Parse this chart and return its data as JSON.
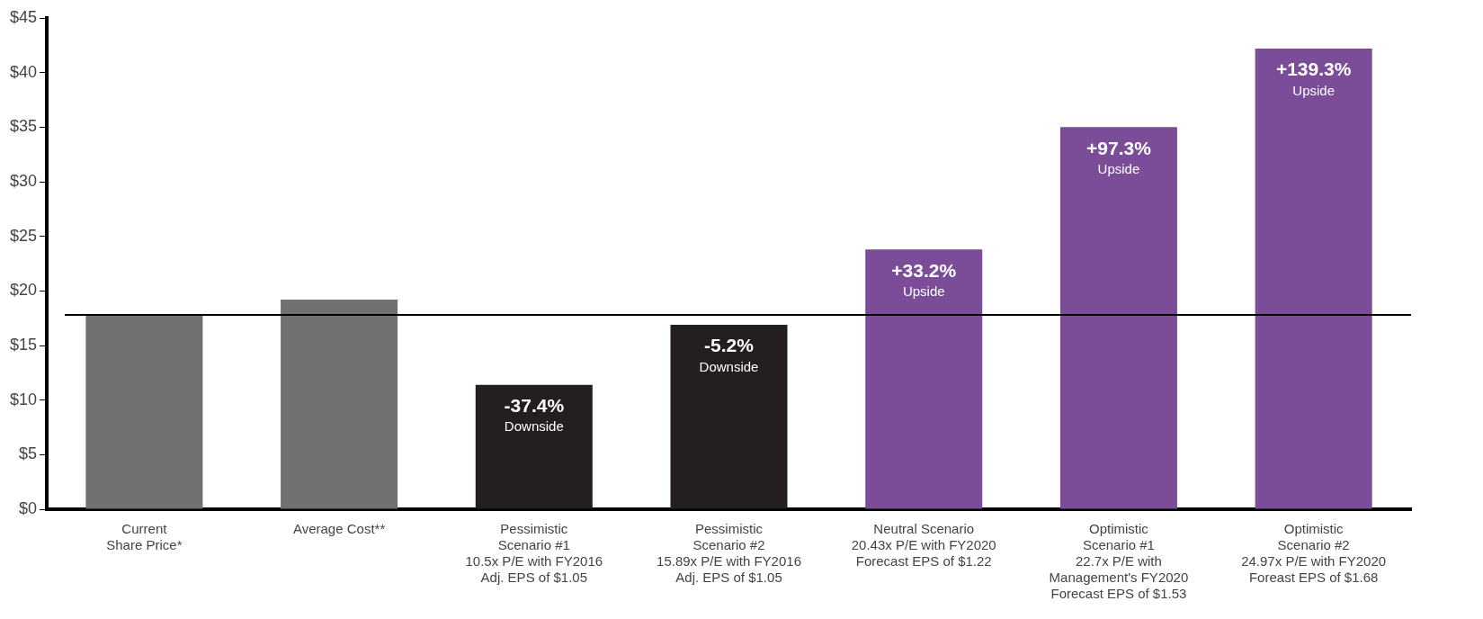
{
  "chart_data": {
    "type": "bar",
    "categories": [
      "Current\nShare Price*",
      "Average Cost**",
      "Pessimistic\nScenario #1\n10.5x P/E with FY2016\nAdj. EPS of $1.05",
      "Pessimistic\nScenario #2\n15.89x P/E with FY2016\nAdj. EPS of $1.05",
      "Neutral Scenario\n20.43x P/E with FY2020\nForecast EPS of $1.22",
      "Optimistic\nScenario #1\n22.7x P/E with\nManagement's FY2020\nForecast EPS of $1.53",
      "Optimistic\nScenario #2\n24.97x P/E with FY2020\nForeast EPS of $1.68"
    ],
    "values": [
      17.8,
      19.2,
      11.4,
      16.9,
      23.8,
      35.0,
      42.2
    ],
    "colors": [
      "#717171",
      "#717171",
      "#231f20",
      "#231f20",
      "#7b4c98",
      "#7b4c98",
      "#7b4c98"
    ],
    "annotations": [
      {
        "text": "-37.4%\nDownside",
        "x": "Pessimistic\nScenario #1\n10.5x P/E with FY2016\nAdj. EPS of $1.05",
        "y": 11.4
      },
      {
        "text": "-5.2%\nDownside",
        "x": "Pessimistic\nScenario #2\n15.89x P/E with FY2016\nAdj. EPS of $1.05",
        "y": 16.9
      },
      {
        "text": "+33.2%\nUpside",
        "x": "Neutral Scenario\n20.43x P/E with FY2020\nForecast EPS of $1.22",
        "y": 23.8
      },
      {
        "text": "+97.3%\nUpside",
        "x": "Optimistic\nScenario #1\n22.7x P/E with\nManagement's FY2020\nForecast EPS of $1.53",
        "y": 35.0
      },
      {
        "text": "+139.3%\nUpside",
        "x": "Optimistic\nScenario #2\n24.97x P/E with FY2020\nForeast EPS of $1.68",
        "y": 42.2
      }
    ],
    "ylim": [
      0,
      45
    ],
    "yticks": [
      {
        "value": 0,
        "label": "$0"
      },
      {
        "value": 5,
        "label": "$5"
      },
      {
        "value": 10,
        "label": "$10"
      },
      {
        "value": 15,
        "label": "$15"
      },
      {
        "value": 20,
        "label": "$20"
      },
      {
        "value": 25,
        "label": "$25"
      },
      {
        "value": 30,
        "label": "$30"
      },
      {
        "value": 35,
        "label": "$35"
      },
      {
        "value": 40,
        "label": "$40"
      },
      {
        "value": 45,
        "label": "$45"
      }
    ],
    "ref_lines": [
      {
        "axis": "y",
        "value": 17.8,
        "color": "#000000"
      }
    ],
    "grid": false,
    "legend": false
  }
}
